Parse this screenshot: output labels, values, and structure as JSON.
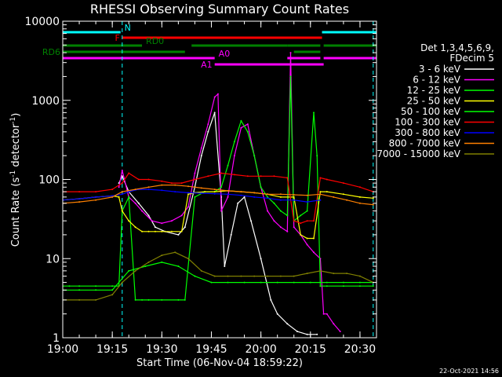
{
  "chart_data": {
    "type": "line",
    "title": "RHESSI Observing Summary Count Rates",
    "xlabel": "Start Time (06-Nov-04 18:59:22)",
    "ylabel": "Count Rate (s⁻¹ detector⁻¹)",
    "ylabel_parts": [
      "Count Rate (s",
      "-1",
      " detector",
      "-1",
      ")"
    ],
    "y_scale": "log",
    "ylim": [
      1,
      10000
    ],
    "xlim_minutes": [
      0,
      95
    ],
    "x_ticks": [
      {
        "minute": 0,
        "label": "19:00"
      },
      {
        "minute": 15,
        "label": "19:15"
      },
      {
        "minute": 30,
        "label": "19:30"
      },
      {
        "minute": 45,
        "label": "19:45"
      },
      {
        "minute": 60,
        "label": "20:00"
      },
      {
        "minute": 75,
        "label": "20:15"
      },
      {
        "minute": 90,
        "label": "20:30"
      }
    ],
    "y_ticks": [
      {
        "value": 1,
        "label": "1"
      },
      {
        "value": 10,
        "label": "10"
      },
      {
        "value": 100,
        "label": "100"
      },
      {
        "value": 1000,
        "label": "1000"
      },
      {
        "value": 10000,
        "label": "10000"
      }
    ],
    "legend": {
      "header": [
        "Det 1,3,4,5,6,9,",
        "FDecim 5"
      ],
      "placement": "right"
    },
    "flag_bars": [
      {
        "label": "N",
        "color": "#00ffff",
        "segments": [
          [
            0,
            17.5
          ],
          [
            78.5,
            95
          ]
        ]
      },
      {
        "label": "F",
        "color": "#ff0000",
        "segments": [
          [
            18,
            78.5
          ]
        ]
      },
      {
        "label": "RD0",
        "color": "#008000",
        "segments": [
          [
            0,
            24
          ],
          [
            39,
            68
          ],
          [
            68,
            78
          ],
          [
            79,
            95
          ]
        ]
      },
      {
        "label": "RD6",
        "color": "#008000",
        "segments": [
          [
            0,
            37
          ],
          [
            70,
            78
          ]
        ]
      },
      {
        "label": "A0",
        "color": "#ff00ff",
        "segments": [
          [
            0,
            46
          ],
          [
            68,
            78
          ],
          [
            79,
            95
          ]
        ]
      },
      {
        "label": "A1",
        "color": "#ff00ff",
        "segments": [
          [
            46,
            79
          ]
        ]
      }
    ],
    "dashed_markers": [
      {
        "minute": 0,
        "color": "#00ffff"
      },
      {
        "minute": 18,
        "color": "#00ffff"
      },
      {
        "minute": 94,
        "color": "#00ffff"
      }
    ],
    "series": [
      {
        "name": "3 - 6 keV",
        "color": "#ffffff",
        "x": [
          0,
          16,
          17,
          18,
          20,
          23,
          26,
          28,
          31,
          35,
          37,
          40,
          42,
          44,
          46,
          48,
          49,
          51,
          53,
          55,
          57,
          60,
          63,
          65,
          68,
          71,
          74,
          77
        ],
        "y": [
          null,
          null,
          90,
          110,
          70,
          50,
          35,
          25,
          22,
          20,
          25,
          80,
          200,
          400,
          700,
          60,
          8,
          20,
          50,
          60,
          30,
          10,
          3,
          2,
          1.5,
          1.2,
          1.1,
          1.1
        ]
      },
      {
        "name": "6 - 12 keV",
        "color": "#ff00ff",
        "x": [
          0,
          16,
          17,
          18,
          20,
          22,
          24,
          27,
          30,
          33,
          36,
          38,
          40,
          42,
          44,
          46,
          47,
          48,
          50,
          52,
          54,
          56,
          58,
          60,
          62,
          64,
          66,
          68,
          69,
          70,
          72,
          74,
          76,
          78,
          79,
          80,
          82,
          84
        ],
        "y": [
          null,
          null,
          80,
          130,
          60,
          50,
          40,
          30,
          28,
          30,
          35,
          45,
          120,
          250,
          500,
          1100,
          1200,
          40,
          60,
          200,
          450,
          500,
          200,
          80,
          40,
          30,
          25,
          22,
          4000,
          25,
          20,
          15,
          12,
          10,
          2,
          2,
          1.5,
          1.2
        ]
      },
      {
        "name": "12 - 25 keV",
        "color": "#00ff00",
        "x": [
          0,
          2,
          5,
          10,
          15,
          17,
          18,
          20,
          22,
          24,
          26,
          30,
          35,
          37,
          40,
          43,
          46,
          48,
          50,
          52,
          54,
          56,
          58,
          60,
          62,
          64,
          66,
          68,
          69,
          70,
          72,
          74,
          76,
          77,
          78,
          80,
          85,
          90,
          94
        ],
        "y": [
          4.5,
          4.5,
          4.5,
          4.5,
          4.5,
          4.5,
          40,
          60,
          3,
          3,
          3,
          3,
          3,
          3,
          60,
          70,
          70,
          80,
          150,
          300,
          550,
          400,
          200,
          80,
          60,
          50,
          40,
          35,
          2000,
          30,
          35,
          40,
          700,
          200,
          4.5,
          4.5,
          4.5,
          4.5,
          4.5
        ]
      },
      {
        "name": "25 - 50 keV",
        "color": "#ffff00",
        "x": [
          0,
          5,
          10,
          15,
          17,
          18,
          20,
          22,
          24,
          26,
          28,
          30,
          33,
          36,
          38,
          40,
          43,
          46,
          50,
          54,
          58,
          62,
          66,
          70,
          72,
          74,
          76,
          78,
          80,
          85,
          90,
          94
        ],
        "y": [
          55,
          57,
          60,
          62,
          60,
          40,
          30,
          25,
          22,
          22,
          22,
          22,
          22,
          22,
          65,
          68,
          70,
          70,
          72,
          70,
          68,
          65,
          60,
          60,
          20,
          18,
          18,
          70,
          70,
          65,
          60,
          58
        ]
      },
      {
        "name": "50 - 100 keV",
        "color": "#00ff00",
        "x": [
          0,
          5,
          10,
          15,
          20,
          25,
          30,
          35,
          40,
          45,
          50,
          55,
          60,
          65,
          70,
          75,
          80,
          85,
          90,
          94
        ],
        "y": [
          4,
          4,
          4,
          4,
          7,
          8,
          9,
          8,
          6,
          5,
          5,
          5,
          5,
          5,
          5,
          5,
          5,
          5,
          5,
          5
        ]
      },
      {
        "name": "100 - 300 keV",
        "color": "#ff0000",
        "x": [
          0,
          5,
          10,
          15,
          18,
          20,
          23,
          26,
          30,
          33,
          36,
          40,
          44,
          48,
          52,
          56,
          60,
          64,
          68,
          70,
          72,
          74,
          76,
          78,
          80,
          85,
          90,
          94
        ],
        "y": [
          70,
          70,
          70,
          75,
          90,
          120,
          100,
          100,
          95,
          90,
          90,
          100,
          110,
          120,
          115,
          110,
          110,
          110,
          105,
          30,
          28,
          30,
          30,
          105,
          100,
          90,
          80,
          70
        ]
      },
      {
        "name": "300 - 800 keV",
        "color": "#0000ff",
        "x": [
          0,
          5,
          10,
          15,
          18,
          20,
          23,
          26,
          30,
          34,
          38,
          42,
          46,
          50,
          54,
          58,
          62,
          66,
          70,
          74,
          78
        ],
        "y": [
          55,
          57,
          60,
          62,
          65,
          70,
          75,
          75,
          73,
          70,
          68,
          67,
          66,
          65,
          63,
          60,
          58,
          55,
          55,
          52,
          55
        ]
      },
      {
        "name": "800 - 7000 keV",
        "color": "#ff8000",
        "x": [
          0,
          5,
          10,
          15,
          18,
          22,
          26,
          30,
          34,
          38,
          42,
          46,
          50,
          54,
          58,
          62,
          66,
          70,
          74,
          78,
          82,
          86,
          90,
          94
        ],
        "y": [
          50,
          52,
          55,
          60,
          70,
          75,
          80,
          85,
          85,
          82,
          78,
          75,
          72,
          70,
          68,
          65,
          65,
          64,
          63,
          65,
          60,
          55,
          50,
          48
        ]
      },
      {
        "name": "7000 - 15000 keV",
        "color": "#808000",
        "x": [
          0,
          5,
          10,
          15,
          18,
          22,
          26,
          30,
          34,
          38,
          42,
          46,
          50,
          54,
          58,
          62,
          66,
          70,
          74,
          78,
          82,
          86,
          90,
          94
        ],
        "y": [
          3,
          3,
          3,
          3.5,
          5,
          7,
          9,
          11,
          12,
          10,
          7,
          6,
          6,
          6,
          6,
          6,
          6,
          6,
          6.5,
          7,
          6.5,
          6.5,
          6,
          5
        ]
      }
    ]
  },
  "footer": {
    "timestamp": "22-Oct-2021 14:56"
  }
}
